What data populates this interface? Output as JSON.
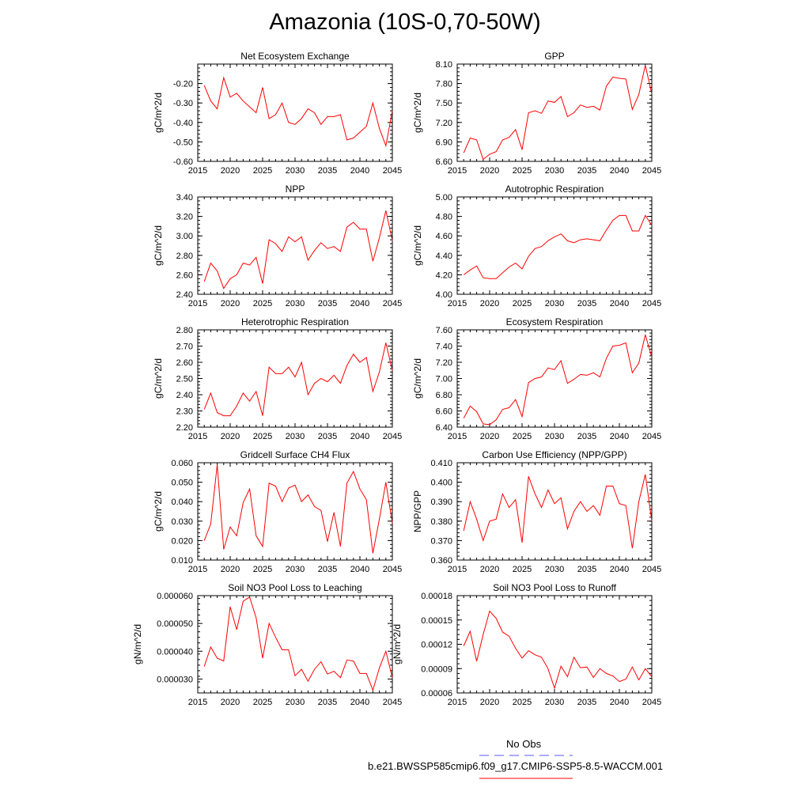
{
  "page": {
    "title": "Amazonia (10S-0,70-50W)"
  },
  "legend": {
    "obs_label": "No Obs",
    "obs_color": "#5a5aff",
    "model_label": "b.e21.BWSSP585cmip6.f09_g17.CMIP6-SSP5-8.5-WACCM.001",
    "model_color": "#ff0000"
  },
  "chart_data": [
    {
      "type": "line",
      "title": "Net Ecosystem Exchange",
      "ylabel": "gC/m^2/d",
      "xlabel": "",
      "xlim": [
        2015,
        2045
      ],
      "ylim": [
        -0.6,
        -0.1
      ],
      "yticks": [
        "-0.60",
        "-0.50",
        "-0.40",
        "-0.30",
        "-0.20"
      ],
      "ytick_values": [
        -0.6,
        -0.5,
        -0.4,
        -0.3,
        -0.2
      ],
      "xticks": [
        "2015",
        "2020",
        "2025",
        "2030",
        "2035",
        "2040",
        "2045"
      ],
      "x": [
        2016,
        2017,
        2018,
        2019,
        2020,
        2021,
        2022,
        2023,
        2024,
        2025,
        2026,
        2027,
        2028,
        2029,
        2030,
        2031,
        2032,
        2033,
        2034,
        2035,
        2036,
        2037,
        2038,
        2039,
        2040,
        2041,
        2042,
        2043,
        2044,
        2045
      ],
      "values": [
        -0.21,
        -0.29,
        -0.33,
        -0.17,
        -0.27,
        -0.25,
        -0.29,
        -0.32,
        -0.35,
        -0.22,
        -0.38,
        -0.36,
        -0.3,
        -0.4,
        -0.41,
        -0.38,
        -0.33,
        -0.35,
        -0.41,
        -0.37,
        -0.37,
        -0.36,
        -0.49,
        -0.48,
        -0.45,
        -0.42,
        -0.3,
        -0.43,
        -0.52,
        -0.34
      ],
      "color": "#ff0000"
    },
    {
      "type": "line",
      "title": "GPP",
      "ylabel": "gC/m^2/d",
      "xlabel": "",
      "xlim": [
        2015,
        2045
      ],
      "ylim": [
        6.6,
        8.1
      ],
      "yticks": [
        "6.60",
        "6.90",
        "7.20",
        "7.50",
        "7.80",
        "8.10"
      ],
      "ytick_values": [
        6.6,
        6.9,
        7.2,
        7.5,
        7.8,
        8.1
      ],
      "xticks": [
        "2015",
        "2020",
        "2025",
        "2030",
        "2035",
        "2040",
        "2045"
      ],
      "x": [
        2016,
        2017,
        2018,
        2019,
        2020,
        2021,
        2022,
        2023,
        2024,
        2025,
        2026,
        2027,
        2028,
        2029,
        2030,
        2031,
        2032,
        2033,
        2034,
        2035,
        2036,
        2037,
        2038,
        2039,
        2040,
        2041,
        2042,
        2043,
        2044,
        2045
      ],
      "values": [
        6.73,
        6.96,
        6.93,
        6.63,
        6.71,
        6.75,
        6.93,
        6.97,
        7.09,
        6.78,
        7.35,
        7.38,
        7.34,
        7.53,
        7.51,
        7.6,
        7.29,
        7.35,
        7.47,
        7.43,
        7.45,
        7.39,
        7.76,
        7.9,
        7.88,
        7.87,
        7.4,
        7.63,
        8.08,
        7.64
      ],
      "color": "#ff0000"
    },
    {
      "type": "line",
      "title": "NPP",
      "ylabel": "gC/m^2/d",
      "xlabel": "",
      "xlim": [
        2015,
        2045
      ],
      "ylim": [
        2.4,
        3.4
      ],
      "yticks": [
        "2.40",
        "2.60",
        "2.80",
        "3.00",
        "3.20",
        "3.40"
      ],
      "ytick_values": [
        2.4,
        2.6,
        2.8,
        3.0,
        3.2,
        3.4
      ],
      "xticks": [
        "2015",
        "2020",
        "2025",
        "2030",
        "2035",
        "2040",
        "2045"
      ],
      "x": [
        2016,
        2017,
        2018,
        2019,
        2020,
        2021,
        2022,
        2023,
        2024,
        2025,
        2026,
        2027,
        2028,
        2029,
        2030,
        2031,
        2032,
        2033,
        2034,
        2035,
        2036,
        2037,
        2038,
        2039,
        2040,
        2041,
        2042,
        2043,
        2044,
        2045
      ],
      "values": [
        2.53,
        2.72,
        2.64,
        2.46,
        2.56,
        2.6,
        2.72,
        2.7,
        2.78,
        2.51,
        2.96,
        2.92,
        2.84,
        2.99,
        2.94,
        2.99,
        2.75,
        2.85,
        2.93,
        2.87,
        2.89,
        2.84,
        3.09,
        3.14,
        3.07,
        3.07,
        2.74,
        2.98,
        3.26,
        2.95
      ],
      "color": "#ff0000"
    },
    {
      "type": "line",
      "title": "Autotrophic Respiration",
      "ylabel": "gC/m^2/d",
      "xlabel": "",
      "xlim": [
        2015,
        2045
      ],
      "ylim": [
        4.0,
        5.0
      ],
      "yticks": [
        "4.00",
        "4.20",
        "4.40",
        "4.60",
        "4.80",
        "5.00"
      ],
      "ytick_values": [
        4.0,
        4.2,
        4.4,
        4.6,
        4.8,
        5.0
      ],
      "xticks": [
        "2015",
        "2020",
        "2025",
        "2030",
        "2035",
        "2040",
        "2045"
      ],
      "x": [
        2016,
        2017,
        2018,
        2019,
        2020,
        2021,
        2022,
        2023,
        2024,
        2025,
        2026,
        2027,
        2028,
        2029,
        2030,
        2031,
        2032,
        2033,
        2034,
        2035,
        2036,
        2037,
        2038,
        2039,
        2040,
        2041,
        2042,
        2043,
        2044,
        2045
      ],
      "values": [
        4.2,
        4.25,
        4.29,
        4.17,
        4.16,
        4.16,
        4.22,
        4.28,
        4.32,
        4.26,
        4.39,
        4.47,
        4.49,
        4.55,
        4.59,
        4.62,
        4.55,
        4.53,
        4.56,
        4.57,
        4.56,
        4.55,
        4.66,
        4.76,
        4.81,
        4.81,
        4.65,
        4.65,
        4.81,
        4.71
      ],
      "color": "#ff0000"
    },
    {
      "type": "line",
      "title": "Heterotrophic Respiration",
      "ylabel": "gC/m^2/d",
      "xlabel": "",
      "xlim": [
        2015,
        2045
      ],
      "ylim": [
        2.2,
        2.8
      ],
      "yticks": [
        "2.20",
        "2.30",
        "2.40",
        "2.50",
        "2.60",
        "2.70",
        "2.80"
      ],
      "ytick_values": [
        2.2,
        2.3,
        2.4,
        2.5,
        2.6,
        2.7,
        2.8
      ],
      "xticks": [
        "2015",
        "2020",
        "2025",
        "2030",
        "2035",
        "2040",
        "2045"
      ],
      "x": [
        2016,
        2017,
        2018,
        2019,
        2020,
        2021,
        2022,
        2023,
        2024,
        2025,
        2026,
        2027,
        2028,
        2029,
        2030,
        2031,
        2032,
        2033,
        2034,
        2035,
        2036,
        2037,
        2038,
        2039,
        2040,
        2041,
        2042,
        2043,
        2044,
        2045
      ],
      "values": [
        2.31,
        2.41,
        2.29,
        2.27,
        2.27,
        2.33,
        2.41,
        2.36,
        2.42,
        2.27,
        2.57,
        2.53,
        2.53,
        2.57,
        2.51,
        2.6,
        2.4,
        2.47,
        2.5,
        2.48,
        2.52,
        2.47,
        2.58,
        2.65,
        2.6,
        2.63,
        2.42,
        2.54,
        2.72,
        2.55
      ],
      "color": "#ff0000"
    },
    {
      "type": "line",
      "title": "Ecosystem Respiration",
      "ylabel": "gC/m^2/d",
      "xlabel": "",
      "xlim": [
        2015,
        2045
      ],
      "ylim": [
        6.4,
        7.6
      ],
      "yticks": [
        "6.40",
        "6.60",
        "6.80",
        "7.00",
        "7.20",
        "7.40",
        "7.60"
      ],
      "ytick_values": [
        6.4,
        6.6,
        6.8,
        7.0,
        7.2,
        7.4,
        7.6
      ],
      "xticks": [
        "2015",
        "2020",
        "2025",
        "2030",
        "2035",
        "2040",
        "2045"
      ],
      "x": [
        2016,
        2017,
        2018,
        2019,
        2020,
        2021,
        2022,
        2023,
        2024,
        2025,
        2026,
        2027,
        2028,
        2029,
        2030,
        2031,
        2032,
        2033,
        2034,
        2035,
        2036,
        2037,
        2038,
        2039,
        2040,
        2041,
        2042,
        2043,
        2044,
        2045
      ],
      "values": [
        6.51,
        6.66,
        6.59,
        6.44,
        6.43,
        6.49,
        6.62,
        6.64,
        6.74,
        6.53,
        6.95,
        7.0,
        7.02,
        7.13,
        7.11,
        7.22,
        6.94,
        6.99,
        7.05,
        7.04,
        7.07,
        7.02,
        7.25,
        7.4,
        7.41,
        7.44,
        7.07,
        7.19,
        7.54,
        7.26
      ],
      "color": "#ff0000"
    },
    {
      "type": "line",
      "title": "Gridcell Surface CH4 Flux",
      "ylabel": "gC/m^2/d",
      "xlabel": "",
      "xlim": [
        2015,
        2045
      ],
      "ylim": [
        0.01,
        0.06
      ],
      "yticks": [
        "0.010",
        "0.020",
        "0.030",
        "0.040",
        "0.050",
        "0.060"
      ],
      "ytick_values": [
        0.01,
        0.02,
        0.03,
        0.04,
        0.05,
        0.06
      ],
      "xticks": [
        "2015",
        "2020",
        "2025",
        "2030",
        "2035",
        "2040",
        "2045"
      ],
      "x": [
        2016,
        2017,
        2018,
        2019,
        2020,
        2021,
        2022,
        2023,
        2024,
        2025,
        2026,
        2027,
        2028,
        2029,
        2030,
        2031,
        2032,
        2033,
        2034,
        2035,
        2036,
        2037,
        2038,
        2039,
        2040,
        2041,
        2042,
        2043,
        2044,
        2045
      ],
      "values": [
        0.02,
        0.0285,
        0.059,
        0.0155,
        0.027,
        0.0225,
        0.0395,
        0.0465,
        0.0225,
        0.017,
        0.0495,
        0.048,
        0.04,
        0.047,
        0.0485,
        0.04,
        0.0435,
        0.0375,
        0.0355,
        0.0195,
        0.0345,
        0.017,
        0.0495,
        0.0555,
        0.0465,
        0.041,
        0.0135,
        0.031,
        0.05,
        0.029
      ],
      "color": "#ff0000"
    },
    {
      "type": "line",
      "title": "Carbon Use Efficiency (NPP/GPP)",
      "ylabel": "NPP/GPP",
      "xlabel": "",
      "xlim": [
        2015,
        2045
      ],
      "ylim": [
        0.36,
        0.41
      ],
      "yticks": [
        "0.360",
        "0.370",
        "0.380",
        "0.390",
        "0.400",
        "0.410"
      ],
      "ytick_values": [
        0.36,
        0.37,
        0.38,
        0.39,
        0.4,
        0.41
      ],
      "xticks": [
        "2015",
        "2020",
        "2025",
        "2030",
        "2035",
        "2040",
        "2045"
      ],
      "x": [
        2016,
        2017,
        2018,
        2019,
        2020,
        2021,
        2022,
        2023,
        2024,
        2025,
        2026,
        2027,
        2028,
        2029,
        2030,
        2031,
        2032,
        2033,
        2034,
        2035,
        2036,
        2037,
        2038,
        2039,
        2040,
        2041,
        2042,
        2043,
        2044,
        2045
      ],
      "values": [
        0.375,
        0.39,
        0.381,
        0.37,
        0.38,
        0.381,
        0.394,
        0.387,
        0.391,
        0.369,
        0.403,
        0.394,
        0.387,
        0.396,
        0.389,
        0.392,
        0.376,
        0.385,
        0.39,
        0.385,
        0.388,
        0.383,
        0.398,
        0.398,
        0.389,
        0.388,
        0.366,
        0.39,
        0.404,
        0.38
      ],
      "color": "#ff0000"
    },
    {
      "type": "line",
      "title": "Soil NO3 Pool Loss to Leaching",
      "ylabel": "gN/m^2/d",
      "xlabel": "",
      "xlim": [
        2015,
        2045
      ],
      "ylim": [
        2.5e-05,
        6e-05
      ],
      "yticks": [
        "0.000030",
        "0.000040",
        "0.000050",
        "0.000060"
      ],
      "ytick_values": [
        3e-05,
        4e-05,
        5e-05,
        6e-05
      ],
      "xticks": [
        "2015",
        "2020",
        "2025",
        "2030",
        "2035",
        "2040",
        "2045"
      ],
      "x": [
        2016,
        2017,
        2018,
        2019,
        2020,
        2021,
        2022,
        2023,
        2024,
        2025,
        2026,
        2027,
        2028,
        2029,
        2030,
        2031,
        2032,
        2033,
        2034,
        2035,
        2036,
        2037,
        2038,
        2039,
        2040,
        2041,
        2042,
        2043,
        2044,
        2045
      ],
      "values": [
        3.45e-05,
        4.15e-05,
        3.75e-05,
        3.65e-05,
        5.6e-05,
        4.78e-05,
        5.8e-05,
        5.95e-05,
        5.2e-05,
        3.75e-05,
        5e-05,
        4.5e-05,
        4.05e-05,
        4.05e-05,
        3.12e-05,
        3.35e-05,
        2.92e-05,
        3.35e-05,
        3.62e-05,
        3.18e-05,
        3.28e-05,
        3.05e-05,
        3.68e-05,
        3.65e-05,
        3.2e-05,
        3.2e-05,
        2.6e-05,
        3.4e-05,
        4e-05,
        3.05e-05
      ],
      "color": "#ff0000"
    },
    {
      "type": "line",
      "title": "Soil NO3 Pool Loss to Runoff",
      "ylabel": "gN/m^2/d",
      "xlabel": "",
      "xlim": [
        2015,
        2045
      ],
      "ylim": [
        6e-05,
        0.00018
      ],
      "yticks": [
        "0.00006",
        "0.00009",
        "0.00012",
        "0.00015",
        "0.00018"
      ],
      "ytick_values": [
        6e-05,
        9e-05,
        0.00012,
        0.00015,
        0.00018
      ],
      "xticks": [
        "2015",
        "2020",
        "2025",
        "2030",
        "2035",
        "2040",
        "2045"
      ],
      "x": [
        2016,
        2017,
        2018,
        2019,
        2020,
        2021,
        2022,
        2023,
        2024,
        2025,
        2026,
        2027,
        2028,
        2029,
        2030,
        2031,
        2032,
        2033,
        2034,
        2035,
        2036,
        2037,
        2038,
        2039,
        2040,
        2041,
        2042,
        2043,
        2044,
        2045
      ],
      "values": [
        0.000118,
        0.000136,
        9.9e-05,
        0.000132,
        0.000161,
        0.000152,
        0.000135,
        0.00013,
        0.000115,
        0.000103,
        0.000112,
        0.000107,
        0.000104,
        9e-05,
        6.6e-05,
        9.3e-05,
        8e-05,
        0.000104,
        9.1e-05,
        9.2e-05,
        7.9e-05,
        9e-05,
        8.4e-05,
        8.1e-05,
        7.4e-05,
        7.7e-05,
        9.2e-05,
        7.6e-05,
        9e-05,
        8e-05
      ],
      "color": "#ff0000"
    }
  ]
}
